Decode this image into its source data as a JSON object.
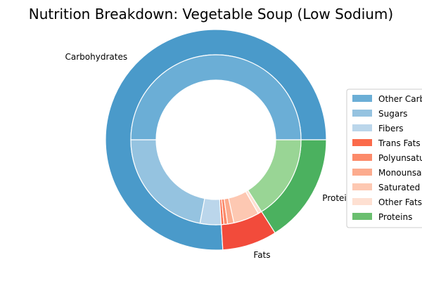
{
  "chart_data": {
    "type": "pie",
    "subtype": "nested-donut",
    "title": "Nutrition Breakdown:  Vegetable Soup (Low Sodium)",
    "outer_ring": {
      "categories": [
        "Carbohydrates",
        "Fats",
        "Proteins"
      ],
      "values": [
        76,
        8,
        16
      ],
      "colors": [
        "#4a9aca",
        "#f24b3b",
        "#4bb15f"
      ]
    },
    "inner_ring": {
      "categories": [
        "Other Carbohydrates",
        "Sugars",
        "Fibers",
        "Trans Fats",
        "Polyunsaturated Fats",
        "Monounsaturated Fats",
        "Saturated Fats",
        "Other Fats",
        "Proteins"
      ],
      "values": [
        50,
        22,
        4,
        0.5,
        0.7,
        1.2,
        4.9,
        0.7,
        16
      ],
      "colors": [
        "#6baed6",
        "#95c3e0",
        "#bbd6eb",
        "#fb6a4a",
        "#fc8a6a",
        "#fcab8e",
        "#fdc8b2",
        "#fee0d2",
        "#99d595"
      ]
    },
    "legend": {
      "placement": "right",
      "entries": [
        "Other Carbohydrates",
        "Sugars",
        "Fibers",
        "Trans Fats",
        "Polyunsaturated Fats",
        "Monounsaturated Fats",
        "Saturated Fats",
        "Other Fats",
        "Proteins"
      ],
      "colors": [
        "#6baed6",
        "#95c3e0",
        "#bbd6eb",
        "#fb6a4a",
        "#fc8a6a",
        "#fcab8e",
        "#fdc8b2",
        "#fee0d2",
        "#6abf6f"
      ]
    }
  }
}
